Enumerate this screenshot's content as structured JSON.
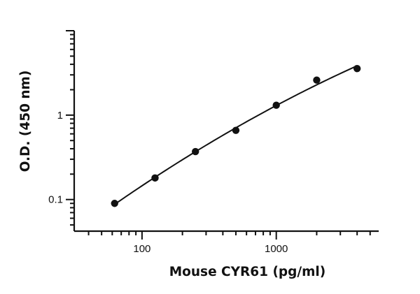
{
  "chart_data": {
    "type": "scatter",
    "title": "",
    "xlabel": "Mouse CYR61 (pg/ml)",
    "ylabel": "O.D. (450 nm)",
    "x_scale": "log",
    "y_scale": "log",
    "xlim": [
      31.25,
      5792
    ],
    "ylim": [
      0.0422,
      10.0
    ],
    "x_ticks": [
      {
        "value": 100,
        "label": "100"
      },
      {
        "value": 1000,
        "label": "1000"
      }
    ],
    "y_ticks": [
      {
        "value": 0.1,
        "label": "0.1"
      },
      {
        "value": 1,
        "label": "1"
      }
    ],
    "grid": false,
    "legend": "none",
    "series": [
      {
        "x": [
          62.5,
          125,
          250,
          500,
          1000,
          2000,
          4000
        ],
        "y": [
          0.09,
          0.18,
          0.37,
          0.66,
          1.31,
          2.6,
          3.56
        ]
      }
    ],
    "fit_curve": true,
    "marker_color": "#111111"
  }
}
